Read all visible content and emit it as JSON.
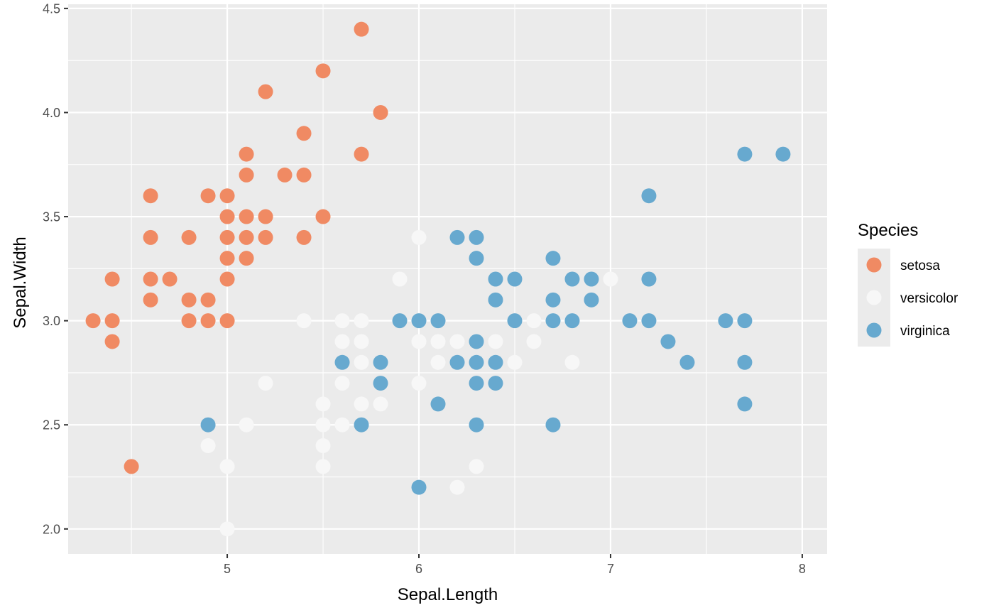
{
  "chart_data": {
    "type": "scatter",
    "title": "",
    "xlabel": "Sepal.Length",
    "ylabel": "Sepal.Width",
    "xlim": [
      4.17,
      8.13
    ],
    "ylim": [
      1.88,
      4.52
    ],
    "x_ticks": [
      5,
      6,
      7,
      8
    ],
    "x_tick_labels": [
      "5",
      "6",
      "7",
      "8"
    ],
    "y_ticks": [
      2.0,
      2.5,
      3.0,
      3.5,
      4.0,
      4.5
    ],
    "y_tick_labels": [
      "2.0",
      "2.5",
      "3.0",
      "3.5",
      "4.0",
      "4.5"
    ],
    "grid": true,
    "panel_background": "#ebebeb",
    "legend": {
      "title": "Species",
      "position": "right"
    },
    "series": [
      {
        "name": "setosa",
        "color": "#f08a63",
        "points": [
          [
            5.7,
            4.4
          ],
          [
            5.5,
            4.2
          ],
          [
            5.2,
            4.1
          ],
          [
            5.8,
            4.0
          ],
          [
            5.4,
            3.9
          ],
          [
            5.1,
            3.8
          ],
          [
            5.7,
            3.8
          ],
          [
            5.1,
            3.7
          ],
          [
            5.3,
            3.7
          ],
          [
            5.4,
            3.7
          ],
          [
            4.6,
            3.6
          ],
          [
            4.9,
            3.6
          ],
          [
            5.0,
            3.6
          ],
          [
            5.0,
            3.5
          ],
          [
            5.1,
            3.5
          ],
          [
            5.2,
            3.5
          ],
          [
            5.5,
            3.5
          ],
          [
            4.6,
            3.4
          ],
          [
            4.8,
            3.4
          ],
          [
            5.0,
            3.4
          ],
          [
            5.1,
            3.4
          ],
          [
            5.2,
            3.4
          ],
          [
            5.4,
            3.4
          ],
          [
            5.0,
            3.3
          ],
          [
            5.1,
            3.3
          ],
          [
            4.4,
            3.2
          ],
          [
            4.6,
            3.2
          ],
          [
            4.7,
            3.2
          ],
          [
            5.0,
            3.2
          ],
          [
            4.6,
            3.1
          ],
          [
            4.8,
            3.1
          ],
          [
            4.9,
            3.1
          ],
          [
            4.3,
            3.0
          ],
          [
            4.4,
            3.0
          ],
          [
            4.8,
            3.0
          ],
          [
            4.9,
            3.0
          ],
          [
            5.0,
            3.0
          ],
          [
            4.4,
            2.9
          ],
          [
            4.5,
            2.3
          ]
        ]
      },
      {
        "name": "versicolor",
        "color": "#f7f7f7",
        "points": [
          [
            6.0,
            3.4
          ],
          [
            5.9,
            3.2
          ],
          [
            7.0,
            3.2
          ],
          [
            5.4,
            3.0
          ],
          [
            5.6,
            3.0
          ],
          [
            5.7,
            3.0
          ],
          [
            6.6,
            3.0
          ],
          [
            5.6,
            2.9
          ],
          [
            5.7,
            2.9
          ],
          [
            6.0,
            2.9
          ],
          [
            6.1,
            2.9
          ],
          [
            6.2,
            2.9
          ],
          [
            6.4,
            2.9
          ],
          [
            6.6,
            2.9
          ],
          [
            5.7,
            2.8
          ],
          [
            6.1,
            2.8
          ],
          [
            6.5,
            2.8
          ],
          [
            6.8,
            2.8
          ],
          [
            5.2,
            2.7
          ],
          [
            5.6,
            2.7
          ],
          [
            6.0,
            2.7
          ],
          [
            5.5,
            2.6
          ],
          [
            5.7,
            2.6
          ],
          [
            5.8,
            2.6
          ],
          [
            5.1,
            2.5
          ],
          [
            5.5,
            2.5
          ],
          [
            5.6,
            2.5
          ],
          [
            4.9,
            2.4
          ],
          [
            5.5,
            2.4
          ],
          [
            5.0,
            2.3
          ],
          [
            5.5,
            2.3
          ],
          [
            6.3,
            2.3
          ],
          [
            6.2,
            2.2
          ],
          [
            5.0,
            2.0
          ]
        ]
      },
      {
        "name": "virginica",
        "color": "#67a9cf",
        "points": [
          [
            7.7,
            3.8
          ],
          [
            7.9,
            3.8
          ],
          [
            7.2,
            3.6
          ],
          [
            6.2,
            3.4
          ],
          [
            6.3,
            3.4
          ],
          [
            6.3,
            3.3
          ],
          [
            6.7,
            3.3
          ],
          [
            6.4,
            3.2
          ],
          [
            6.5,
            3.2
          ],
          [
            6.8,
            3.2
          ],
          [
            6.9,
            3.2
          ],
          [
            7.2,
            3.2
          ],
          [
            6.4,
            3.1
          ],
          [
            6.7,
            3.1
          ],
          [
            6.9,
            3.1
          ],
          [
            5.9,
            3.0
          ],
          [
            6.0,
            3.0
          ],
          [
            6.1,
            3.0
          ],
          [
            6.5,
            3.0
          ],
          [
            6.7,
            3.0
          ],
          [
            6.8,
            3.0
          ],
          [
            7.1,
            3.0
          ],
          [
            7.2,
            3.0
          ],
          [
            7.6,
            3.0
          ],
          [
            7.7,
            3.0
          ],
          [
            6.3,
            2.9
          ],
          [
            7.3,
            2.9
          ],
          [
            5.6,
            2.8
          ],
          [
            5.8,
            2.8
          ],
          [
            6.2,
            2.8
          ],
          [
            6.3,
            2.8
          ],
          [
            6.4,
            2.8
          ],
          [
            7.4,
            2.8
          ],
          [
            7.7,
            2.8
          ],
          [
            5.8,
            2.7
          ],
          [
            6.3,
            2.7
          ],
          [
            6.4,
            2.7
          ],
          [
            6.1,
            2.6
          ],
          [
            7.7,
            2.6
          ],
          [
            4.9,
            2.5
          ],
          [
            5.7,
            2.5
          ],
          [
            6.3,
            2.5
          ],
          [
            6.7,
            2.5
          ],
          [
            6.0,
            2.2
          ]
        ]
      }
    ]
  }
}
